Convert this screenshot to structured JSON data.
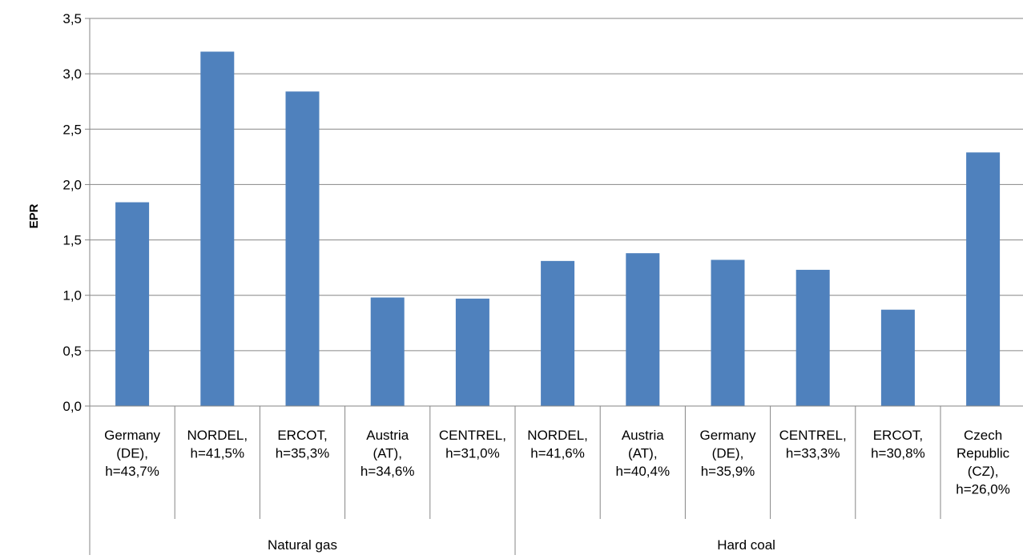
{
  "chart_data": {
    "type": "bar",
    "title": "",
    "ylabel": "EPR",
    "ylim": [
      0,
      3.5
    ],
    "yticks": [
      "0,0",
      "0,5",
      "1,0",
      "1,5",
      "2,0",
      "2,5",
      "3,0",
      "3,5"
    ],
    "grid": true,
    "bar_color": "#4f81bd",
    "groups": [
      {
        "name": "Natural gas",
        "categories": [
          {
            "lines": [
              "Germany",
              "(DE),",
              "h=43,7%"
            ],
            "value": 1.84
          },
          {
            "lines": [
              "NORDEL,",
              "h=41,5%"
            ],
            "value": 3.2
          },
          {
            "lines": [
              "ERCOT,",
              "h=35,3%"
            ],
            "value": 2.84
          },
          {
            "lines": [
              "Austria",
              "(AT),",
              "h=34,6%"
            ],
            "value": 0.98
          },
          {
            "lines": [
              "CENTREL,",
              "h=31,0%"
            ],
            "value": 0.97
          }
        ]
      },
      {
        "name": "Hard coal",
        "categories": [
          {
            "lines": [
              "NORDEL,",
              "h=41,6%"
            ],
            "value": 1.31
          },
          {
            "lines": [
              "Austria",
              "(AT),",
              "h=40,4%"
            ],
            "value": 1.38
          },
          {
            "lines": [
              "Germany",
              "(DE),",
              "h=35,9%"
            ],
            "value": 1.32
          },
          {
            "lines": [
              "CENTREL,",
              "h=33,3%"
            ],
            "value": 1.23
          },
          {
            "lines": [
              "ERCOT,",
              "h=30,8%"
            ],
            "value": 0.87
          },
          {
            "lines": [
              "Czech",
              "Republic",
              "(CZ),",
              "h=26,0%"
            ],
            "value": 2.29
          }
        ]
      }
    ]
  }
}
